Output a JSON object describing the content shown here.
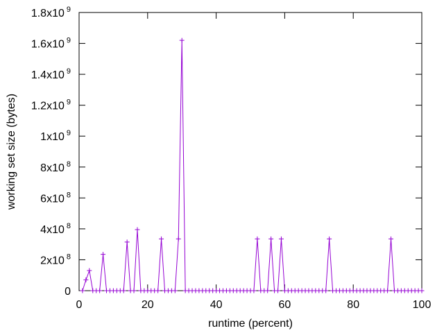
{
  "chart_data": {
    "type": "line",
    "xlabel": "runtime (percent)",
    "ylabel": "working set size (bytes)",
    "xlim": [
      0,
      100
    ],
    "ylim": [
      0,
      1800000000
    ],
    "x_ticks": [
      "0",
      "20",
      "40",
      "60",
      "80",
      "100"
    ],
    "y_ticks": [
      {
        "value": 0,
        "label": "0",
        "exp": ""
      },
      {
        "value": 200000000,
        "label": "2x10",
        "exp": "8"
      },
      {
        "value": 400000000,
        "label": "4x10",
        "exp": "8"
      },
      {
        "value": 600000000,
        "label": "6x10",
        "exp": "8"
      },
      {
        "value": 800000000,
        "label": "8x10",
        "exp": "8"
      },
      {
        "value": 1000000000,
        "label": "1x10",
        "exp": "9"
      },
      {
        "value": 1200000000,
        "label": "1.2x10",
        "exp": "9"
      },
      {
        "value": 1400000000,
        "label": "1.4x10",
        "exp": "9"
      },
      {
        "value": 1600000000,
        "label": "1.6x10",
        "exp": "9"
      },
      {
        "value": 1800000000,
        "label": "1.8x10",
        "exp": "9"
      }
    ],
    "grid": false,
    "marker": "plus",
    "line_color": "#9400d3",
    "marker_color": "#9400d3",
    "x": [
      1,
      2,
      3,
      4,
      5,
      6,
      7,
      8,
      9,
      10,
      11,
      12,
      13,
      14,
      15,
      16,
      17,
      18,
      19,
      20,
      21,
      22,
      23,
      24,
      25,
      26,
      27,
      28,
      29,
      30,
      31,
      32,
      33,
      34,
      35,
      36,
      37,
      38,
      39,
      40,
      41,
      42,
      43,
      44,
      45,
      46,
      47,
      48,
      49,
      50,
      51,
      52,
      53,
      54,
      55,
      56,
      57,
      58,
      59,
      60,
      61,
      62,
      63,
      64,
      65,
      66,
      67,
      68,
      69,
      70,
      71,
      72,
      73,
      74,
      75,
      76,
      77,
      78,
      79,
      80,
      81,
      82,
      83,
      84,
      85,
      86,
      87,
      88,
      89,
      90,
      91,
      92,
      93,
      94,
      95,
      96,
      97,
      98,
      99,
      100
    ],
    "y": [
      0,
      70000000,
      130000000,
      0,
      0,
      0,
      235000000,
      0,
      0,
      0,
      0,
      0,
      0,
      315000000,
      0,
      0,
      395000000,
      0,
      0,
      0,
      0,
      0,
      0,
      335000000,
      0,
      0,
      0,
      0,
      335000000,
      1620000000,
      0,
      0,
      0,
      0,
      0,
      0,
      0,
      0,
      0,
      0,
      0,
      0,
      0,
      0,
      0,
      0,
      0,
      0,
      0,
      0,
      0,
      335000000,
      0,
      0,
      0,
      335000000,
      0,
      0,
      335000000,
      0,
      0,
      0,
      0,
      0,
      0,
      0,
      0,
      0,
      0,
      0,
      0,
      0,
      335000000,
      0,
      0,
      0,
      0,
      0,
      0,
      0,
      0,
      0,
      0,
      0,
      0,
      0,
      0,
      0,
      0,
      0,
      335000000,
      0,
      0,
      0,
      0,
      0,
      0,
      0,
      0,
      0
    ]
  }
}
